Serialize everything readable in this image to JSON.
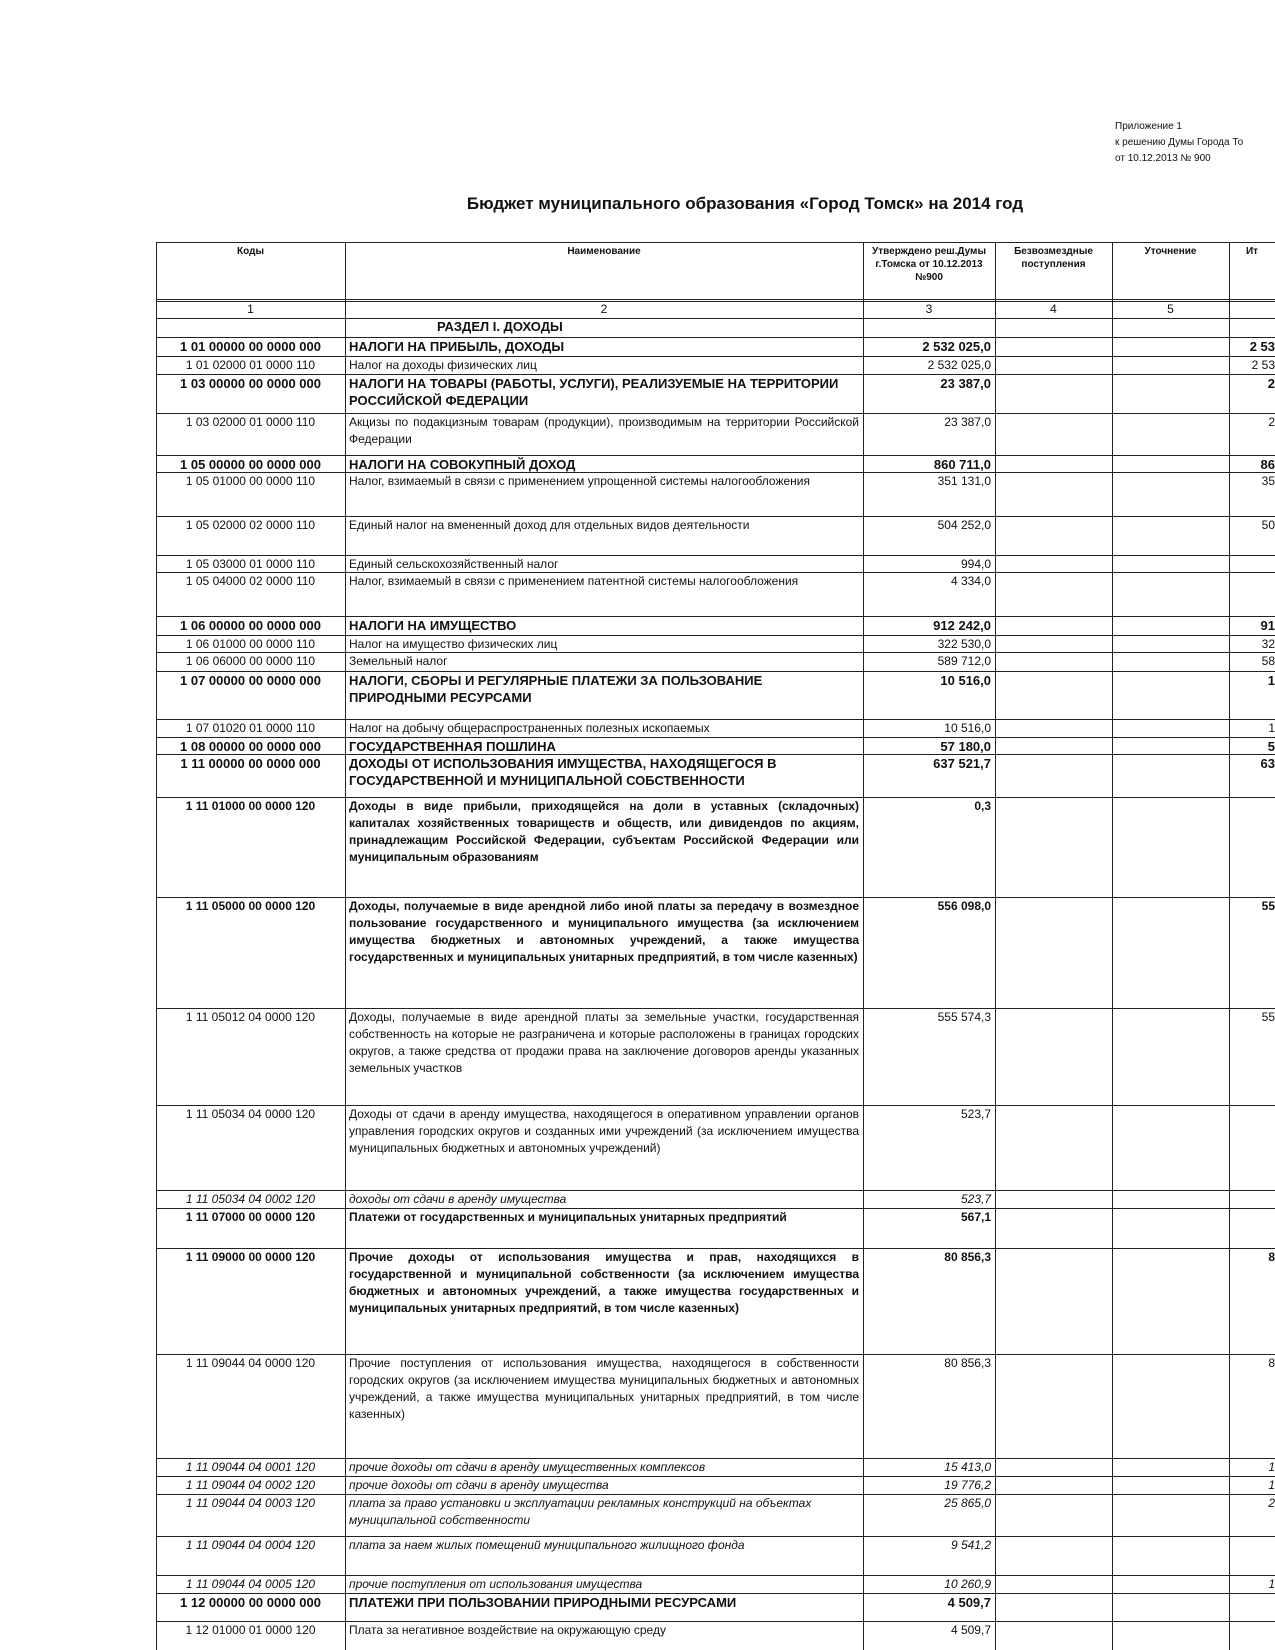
{
  "header": {
    "appendix": "Приложение 1",
    "decision": "к решению Думы Города То",
    "date": "от 10.12.2013 № 900",
    "title": "Бюджет муниципального образования «Город Томск» на 2014 год"
  },
  "table": {
    "columns": [
      "Коды",
      "Наименование",
      "Утверждено реш.Думы г.Томска от 10.12.2013 №900",
      "Безвозмездные поступления",
      "Уточнение",
      "Ит"
    ],
    "column_numbers": [
      "1",
      "2",
      "3",
      "4",
      "5"
    ],
    "section": "РАЗДЕЛ I. ДОХОДЫ",
    "rows": [
      {
        "code": "1 01 00000 00 0000 000",
        "name": "НАЛОГИ НА ПРИБЫЛЬ, ДОХОДЫ",
        "approved": "2 532 025,0",
        "total": "2 53",
        "style": "bold"
      },
      {
        "code": "1 01 02000 01 0000 110",
        "name": "Налог на доходы физических лиц",
        "approved": "2 532 025,0",
        "total": "2 53",
        "style": "normal"
      },
      {
        "code": "1 03 00000 00 0000 000",
        "name": "НАЛОГИ НА ТОВАРЫ (РАБОТЫ, УСЛУГИ), РЕАЛИЗУЕМЫЕ НА ТЕРРИТОРИИ РОССИЙСКОЙ ФЕДЕРАЦИИ",
        "approved": "23 387,0",
        "total": "2",
        "style": "bold"
      },
      {
        "code": "1 03 02000 01 0000 110",
        "name": "Акцизы по подакцизным товарам (продукции), производимым на территории Российской Федерации",
        "approved": "23 387,0",
        "total": "2",
        "style": "normal"
      },
      {
        "code": "1 05 00000 00 0000 000",
        "name": "НАЛОГИ НА СОВОКУПНЫЙ ДОХОД",
        "approved": "860 711,0",
        "total": "86",
        "style": "bold"
      },
      {
        "code": "1 05 01000 00 0000 110",
        "name": "Налог, взимаемый в связи с применением упрощенной системы налогообложения",
        "approved": "351 131,0",
        "total": "35",
        "style": "normal"
      },
      {
        "code": "1 05 02000 02 0000 110",
        "name": "Единый налог на вмененный доход для отдельных видов деятельности",
        "approved": "504 252,0",
        "total": "50",
        "style": "normal"
      },
      {
        "code": "1 05 03000 01 0000 110",
        "name": "Единый сельскохозяйственный налог",
        "approved": "994,0",
        "style": "normal"
      },
      {
        "code": "1 05 04000 02 0000 110",
        "name": "Налог, взимаемый в связи с применением патентной системы налогообложения",
        "approved": "4 334,0",
        "style": "normal"
      },
      {
        "code": "1 06 00000 00 0000 000",
        "name": "НАЛОГИ НА ИМУЩЕСТВО",
        "approved": "912 242,0",
        "total": "91",
        "style": "bold"
      },
      {
        "code": "1 06 01000 00 0000 110",
        "name": "Налог на имущество физических лиц",
        "approved": "322 530,0",
        "total": "32",
        "style": "normal"
      },
      {
        "code": "1 06 06000 00 0000 110",
        "name": "Земельный налог",
        "approved": "589 712,0",
        "total": "58",
        "style": "normal"
      },
      {
        "code": "1 07 00000 00 0000 000",
        "name": "НАЛОГИ, СБОРЫ И РЕГУЛЯРНЫЕ ПЛАТЕЖИ ЗА ПОЛЬЗОВАНИЕ ПРИРОДНЫМИ РЕСУРСАМИ",
        "approved": "10 516,0",
        "total": "1",
        "style": "bold"
      },
      {
        "code": "1 07 01020 01 0000 110",
        "name": "Налог на добычу общераспространенных полезных ископаемых",
        "approved": "10 516,0",
        "total": "1",
        "style": "normal"
      },
      {
        "code": "1 08 00000 00 0000 000",
        "name": "ГОСУДАРСТВЕННАЯ ПОШЛИНА",
        "approved": "57 180,0",
        "total": "5",
        "style": "bold"
      },
      {
        "code": "1 11 00000 00 0000 000",
        "name": "ДОХОДЫ ОТ ИСПОЛЬЗОВАНИЯ ИМУЩЕСТВА, НАХОДЯЩЕГОСЯ В ГОСУДАРСТВЕННОЙ И МУНИЦИПАЛЬНОЙ СОБСТВЕННОСТИ",
        "approved": "637 521,7",
        "total": "63",
        "style": "bold"
      },
      {
        "code": "1 11 01000 00 0000 120",
        "name": "Доходы в виде прибыли, приходящейся на доли в уставных (складочных) капиталах хозяйственных товариществ и обществ, или дивидендов по акциям, принадлежащим Российской Федерации, субъектам Российской Федерации или муниципальным образованиям",
        "approved": "0,3",
        "style": "bold-small"
      },
      {
        "code": "1 11 05000 00 0000 120",
        "name": "Доходы, получаемые в виде арендной либо иной платы за передачу в возмездное пользование государственного и муниципального имущества (за исключением имущества бюджетных и автономных учреждений, а также имущества государственных и муниципальных унитарных предприятий, в том числе казенных)",
        "approved": "556 098,0",
        "total": "55",
        "style": "bold-small"
      },
      {
        "code": "1 11 05012 04 0000 120",
        "name": "Доходы, получаемые в виде арендной платы за земельные участки, государственная собственность на которые не разграничена и которые расположены в границах городских округов, а также средства от продажи права на заключение договоров аренды указанных земельных участков",
        "approved": "555 574,3",
        "total": "55",
        "style": "normal"
      },
      {
        "code": "1 11 05034 04 0000 120",
        "name": "Доходы от сдачи в аренду имущества, находящегося в оперативном управлении органов управления городских округов и созданных ими учреждений (за исключением имущества муниципальных бюджетных и автономных учреждений)",
        "approved": "523,7",
        "style": "normal"
      },
      {
        "code": "1 11 05034 04 0002 120",
        "name": "доходы от сдачи в аренду имущества",
        "approved": "523,7",
        "style": "italic"
      },
      {
        "code": "1 11 07000 00 0000 120",
        "name": "Платежи от государственных и муниципальных унитарных предприятий",
        "approved": "567,1",
        "style": "bold-small"
      },
      {
        "code": "1 11 09000 00 0000 120",
        "name": "Прочие доходы от использования имущества и прав, находящихся в государственной и муниципальной собственности (за исключением имущества бюджетных и автономных учреждений, а также имущества государственных и муниципальных унитарных предприятий, в том числе казенных)",
        "approved": "80 856,3",
        "total": "8",
        "style": "bold-small"
      },
      {
        "code": "1 11 09044 04 0000 120",
        "name": "Прочие поступления от использования имущества, находящегося в собственности городских округов (за исключением имущества муниципальных бюджетных и автономных учреждений, а также имущества муниципальных унитарных предприятий, в том числе казенных)",
        "approved": "80 856,3",
        "total": "8",
        "style": "normal"
      },
      {
        "code": "1 11 09044 04 0001 120",
        "name": "прочие доходы от сдачи в аренду имущественных комплексов",
        "approved": "15 413,0",
        "total": "1",
        "style": "italic"
      },
      {
        "code": "1 11 09044 04 0002 120",
        "name": "прочие доходы от сдачи в аренду имущества",
        "approved": "19 776,2",
        "total": "1",
        "style": "italic"
      },
      {
        "code": "1 11 09044 04 0003 120",
        "name": "плата за право установки и эксплуатации рекламных конструкций на объектах муниципальной собственности",
        "approved": "25 865,0",
        "total": "2",
        "style": "italic"
      },
      {
        "code": "1 11 09044 04 0004 120",
        "name": "плата за наем жилых помещений муниципального жилищного фонда",
        "approved": "9 541,2",
        "style": "italic"
      },
      {
        "code": "1 11 09044 04 0005 120",
        "name": "прочие поступления от использования имущества",
        "approved": "10 260,9",
        "total": "1",
        "style": "italic"
      },
      {
        "code": "1 12 00000 00 0000 000",
        "name": "ПЛАТЕЖИ ПРИ ПОЛЬЗОВАНИИ ПРИРОДНЫМИ РЕСУРСАМИ",
        "approved": "4 509,7",
        "style": "bold"
      },
      {
        "code": "1 12 01000 01 0000 120",
        "name": "Плата за негативное воздействие на окружающую среду",
        "approved": "4 509,7",
        "style": "normal"
      }
    ]
  }
}
